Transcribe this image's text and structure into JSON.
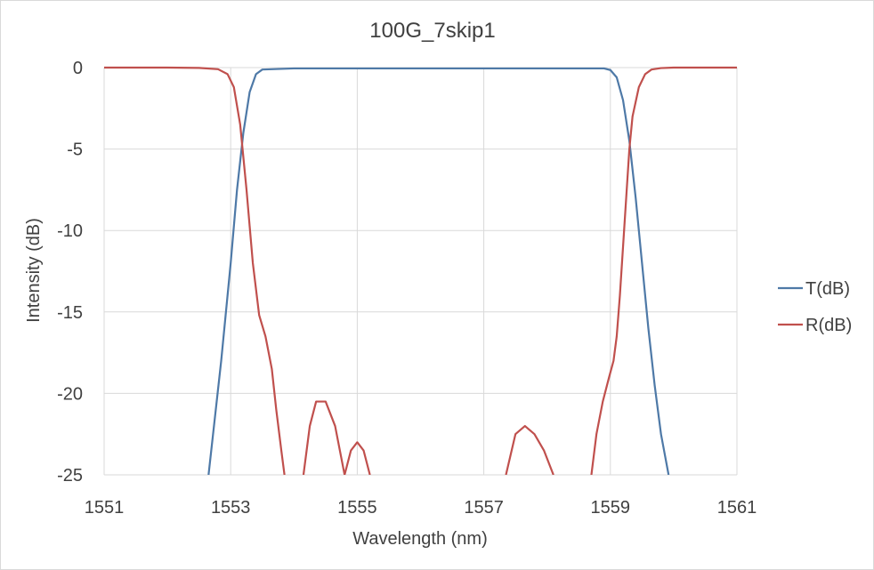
{
  "chart_data": {
    "type": "line",
    "title": "100G_7skip1",
    "xlabel": "Wavelength (nm)",
    "ylabel": "Intensity (dB)",
    "xlim": [
      1551,
      1561
    ],
    "ylim": [
      -25,
      0
    ],
    "x_ticks": [
      "1551",
      "1553",
      "1555",
      "1557",
      "1559",
      "1561"
    ],
    "y_ticks": [
      "0",
      "-5",
      "-10",
      "-15",
      "-20",
      "-25"
    ],
    "grid": true,
    "legend_position": "right",
    "series": [
      {
        "name": "T(dB)",
        "color": "#4e79a7",
        "x": [
          1552.65,
          1552.85,
          1553.0,
          1553.1,
          1553.2,
          1553.3,
          1553.4,
          1553.5,
          1554.0,
          1555.0,
          1556.0,
          1557.0,
          1558.0,
          1558.9,
          1559.0,
          1559.1,
          1559.2,
          1559.3,
          1559.4,
          1559.5,
          1559.6,
          1559.7,
          1559.8,
          1559.92
        ],
        "y": [
          -25,
          -18,
          -12,
          -7.5,
          -4,
          -1.5,
          -0.4,
          -0.12,
          -0.05,
          -0.05,
          -0.05,
          -0.05,
          -0.05,
          -0.05,
          -0.15,
          -0.6,
          -2,
          -4.5,
          -8,
          -12,
          -16,
          -19.5,
          -22.5,
          -25
        ]
      },
      {
        "name": "R(dB)",
        "color": "#c0504d",
        "x": [
          1551.0,
          1552.0,
          1552.5,
          1552.8,
          1552.95,
          1553.05,
          1553.15,
          1553.25,
          1553.35,
          1553.45,
          1553.55,
          1553.65,
          1553.72,
          1553.8,
          1553.85,
          null,
          1554.15,
          1554.25,
          1554.35,
          1554.5,
          1554.65,
          1554.8,
          null,
          1554.8,
          1554.9,
          1555.0,
          1555.1,
          1555.2,
          null,
          1557.35,
          1557.5,
          1557.65,
          1557.8,
          1557.95,
          1558.1,
          null,
          1558.7,
          1558.78,
          1558.88,
          1558.98,
          1559.05,
          1559.1,
          1559.15,
          1559.2,
          1559.25,
          1559.3,
          1559.35,
          1559.45,
          1559.55,
          1559.65,
          1559.8,
          1560.0,
          1561.0
        ],
        "y": [
          0,
          0,
          -0.02,
          -0.1,
          -0.4,
          -1.2,
          -3.5,
          -7.5,
          -12,
          -15.2,
          -16.5,
          -18.5,
          -21,
          -23.5,
          -25,
          null,
          -25,
          -22,
          -20.5,
          -20.5,
          -22,
          -25,
          null,
          -25,
          -23.5,
          -23,
          -23.5,
          -25,
          null,
          -25,
          -22.5,
          -22,
          -22.5,
          -23.5,
          -25,
          null,
          -25,
          -22.5,
          -20.5,
          -19,
          -18,
          -16.5,
          -14,
          -11,
          -8,
          -5,
          -3,
          -1.2,
          -0.4,
          -0.12,
          -0.03,
          0,
          0
        ]
      }
    ]
  }
}
